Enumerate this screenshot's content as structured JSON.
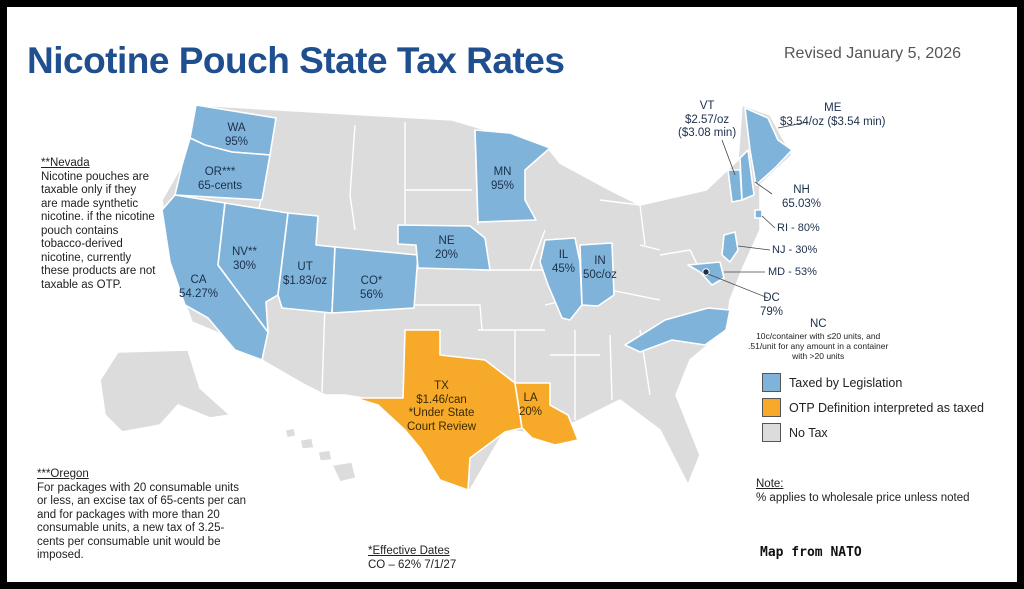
{
  "title": "Nicotine Pouch State Tax Rates",
  "revised": "Revised January 5, 2026",
  "colors": {
    "legislation": "#7fb3da",
    "otp": "#f7aa2a",
    "none": "#dcdcdc",
    "border": "#ffffff",
    "title": "#1f4f8f"
  },
  "notes": {
    "nevada": {
      "heading": "**Nevada",
      "body": "Nicotine pouches are taxable only if they are made synthetic nicotine. if the nicotine pouch contains tobacco-derived nicotine, currently these products are not taxable as OTP."
    },
    "oregon": {
      "heading": "***Oregon",
      "body": "For packages with 20 consumable units or less, an excise tax of 65-cents per can and for packages with more than 20 consumable units, a new tax of 3.25-cents per consumable unit would be imposed."
    },
    "effective": {
      "heading": "*Effective Dates",
      "body": "CO – 62% 7/1/27"
    },
    "wholesale": {
      "heading": "Note:",
      "body": "% applies to wholesale price unless noted"
    }
  },
  "states": {
    "wa": {
      "name": "WA",
      "rate": "95%"
    },
    "or": {
      "name": "OR***",
      "rate": "65-cents"
    },
    "nv": {
      "name": "NV**",
      "rate": "30%"
    },
    "ca": {
      "name": "CA",
      "rate": "54.27%"
    },
    "ut": {
      "name": "UT",
      "rate": "$1.83/oz"
    },
    "co": {
      "name": "CO*",
      "rate": "56%"
    },
    "ne": {
      "name": "NE",
      "rate": "20%"
    },
    "mn": {
      "name": "MN",
      "rate": "95%"
    },
    "il": {
      "name": "IL",
      "rate": "45%"
    },
    "in": {
      "name": "IN",
      "rate": "50c/oz"
    },
    "tx": {
      "name": "TX",
      "rate": "$1.46/can",
      "note": "*Under State",
      "note2": "Court Review"
    },
    "la": {
      "name": "LA",
      "rate": "20%"
    },
    "vt": {
      "name": "VT",
      "rate": "$2.57/oz",
      "min": "($3.08 min)"
    },
    "me": {
      "name": "ME",
      "rate": "$3.54/oz ($3.54 min)"
    },
    "nh": {
      "name": "NH",
      "rate": "65.03%"
    },
    "ri": {
      "label": "RI - 80%"
    },
    "nj": {
      "label": "NJ - 30%"
    },
    "md": {
      "label": "MD - 53%"
    },
    "dc": {
      "name": "DC",
      "rate": "79%"
    },
    "nc": {
      "name": "NC",
      "detail1": "10c/container with ≤20 units, and",
      "detail2": ".51/unit for any amount in a container",
      "detail3": "with >20 units"
    }
  },
  "legend": [
    {
      "label": "Taxed by Legislation",
      "color": "#7fb3da"
    },
    {
      "label": "OTP Definition interpreted as taxed",
      "color": "#f7aa2a"
    },
    {
      "label": "No Tax",
      "color": "#dcdcdc"
    }
  ],
  "credit": "Map from NATO"
}
